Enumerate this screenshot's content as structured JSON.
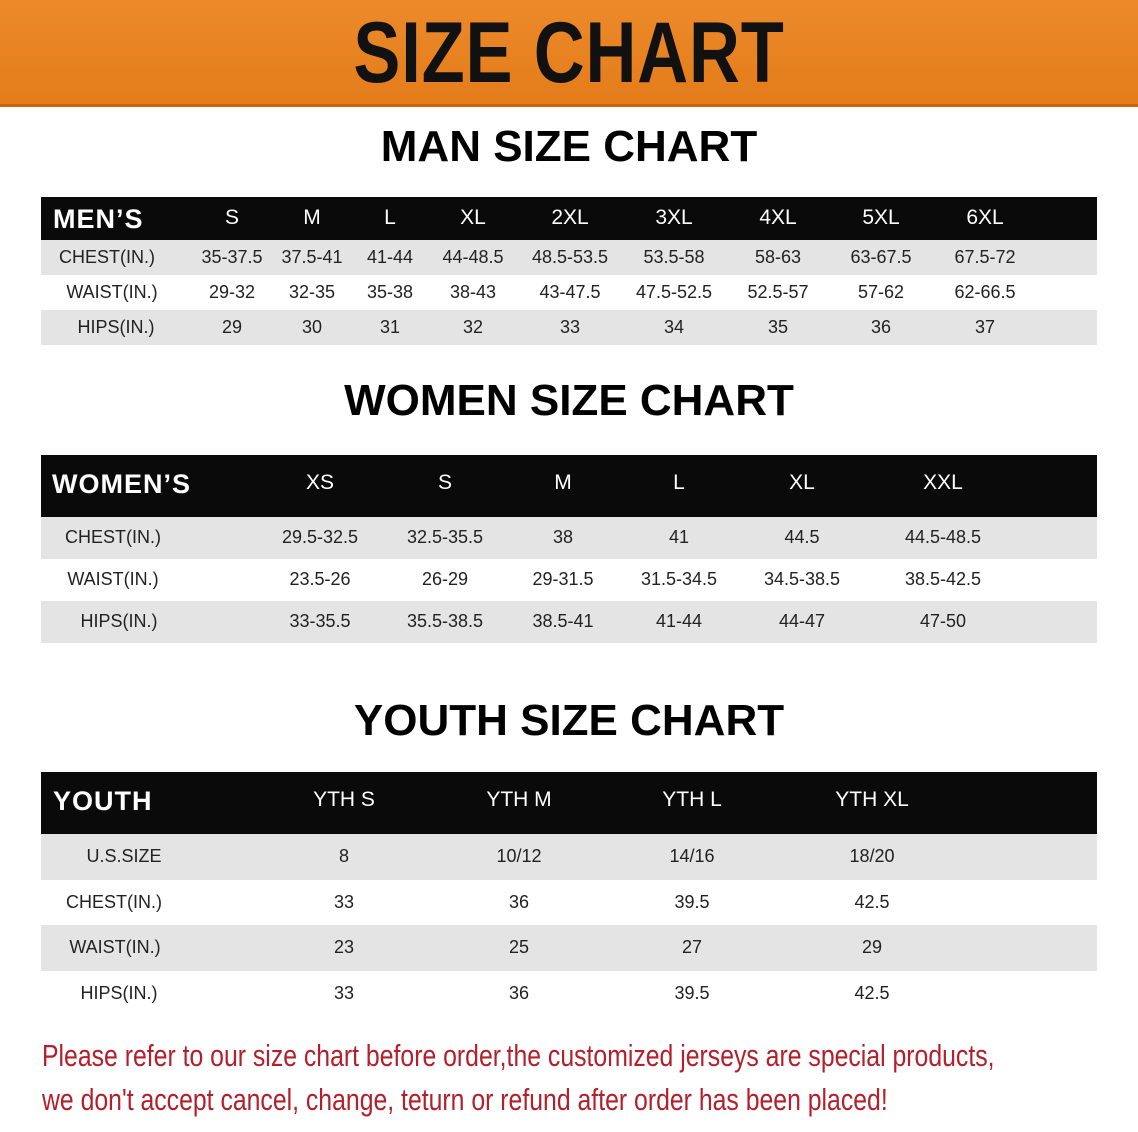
{
  "banner": {
    "title": "SIZE CHART",
    "color": "#e8821f"
  },
  "men": {
    "title": "MAN SIZE CHART",
    "header": [
      "MEN’S",
      "S",
      "M",
      "L",
      "XL",
      "2XL",
      "3XL",
      "4XL",
      "5XL",
      "6XL"
    ],
    "rows": [
      [
        "CHEST(IN.)",
        "35-37.5",
        "37.5-41",
        "41-44",
        "44-48.5",
        "48.5-53.5",
        "53.5-58",
        "58-63",
        "63-67.5",
        "67.5-72"
      ],
      [
        "WAIST(IN.)",
        "29-32",
        "32-35",
        "35-38",
        "38-43",
        "43-47.5",
        "47.5-52.5",
        "52.5-57",
        "57-62",
        "62-66.5"
      ],
      [
        "HIPS(IN.)",
        "29",
        "30",
        "31",
        "32",
        "33",
        "34",
        "35",
        "36",
        "37"
      ]
    ]
  },
  "women": {
    "title": "WOMEN SIZE CHART",
    "header": [
      "WOMEN’S",
      "XS",
      "S",
      "M",
      "L",
      "XL",
      "XXL"
    ],
    "rows": [
      [
        "CHEST(IN.)",
        "29.5-32.5",
        "32.5-35.5",
        "38",
        "41",
        "44.5",
        "44.5-48.5"
      ],
      [
        "WAIST(IN.)",
        "23.5-26",
        "26-29",
        "29-31.5",
        "31.5-34.5",
        "34.5-38.5",
        "38.5-42.5"
      ],
      [
        "HIPS(IN.)",
        "33-35.5",
        "35.5-38.5",
        "38.5-41",
        "41-44",
        "44-47",
        "47-50"
      ]
    ]
  },
  "youth": {
    "title": "YOUTH SIZE CHART",
    "header": [
      "YOUTH",
      "YTH S",
      "YTH M",
      "YTH L",
      "YTH XL"
    ],
    "rows": [
      [
        "U.S.SIZE",
        "8",
        "10/12",
        "14/16",
        "18/20"
      ],
      [
        "CHEST(IN.)",
        "33",
        "36",
        "39.5",
        "42.5"
      ],
      [
        "WAIST(IN.)",
        "23",
        "25",
        "27",
        "29"
      ],
      [
        "HIPS(IN.)",
        "33",
        "36",
        "39.5",
        "42.5"
      ]
    ]
  },
  "notice": {
    "line1": "Please refer to our size chart before order,the customized jerseys are special products,",
    "line2": "we don't accept cancel, change, teturn or refund after order has been placed!",
    "color": "#b3202c"
  }
}
